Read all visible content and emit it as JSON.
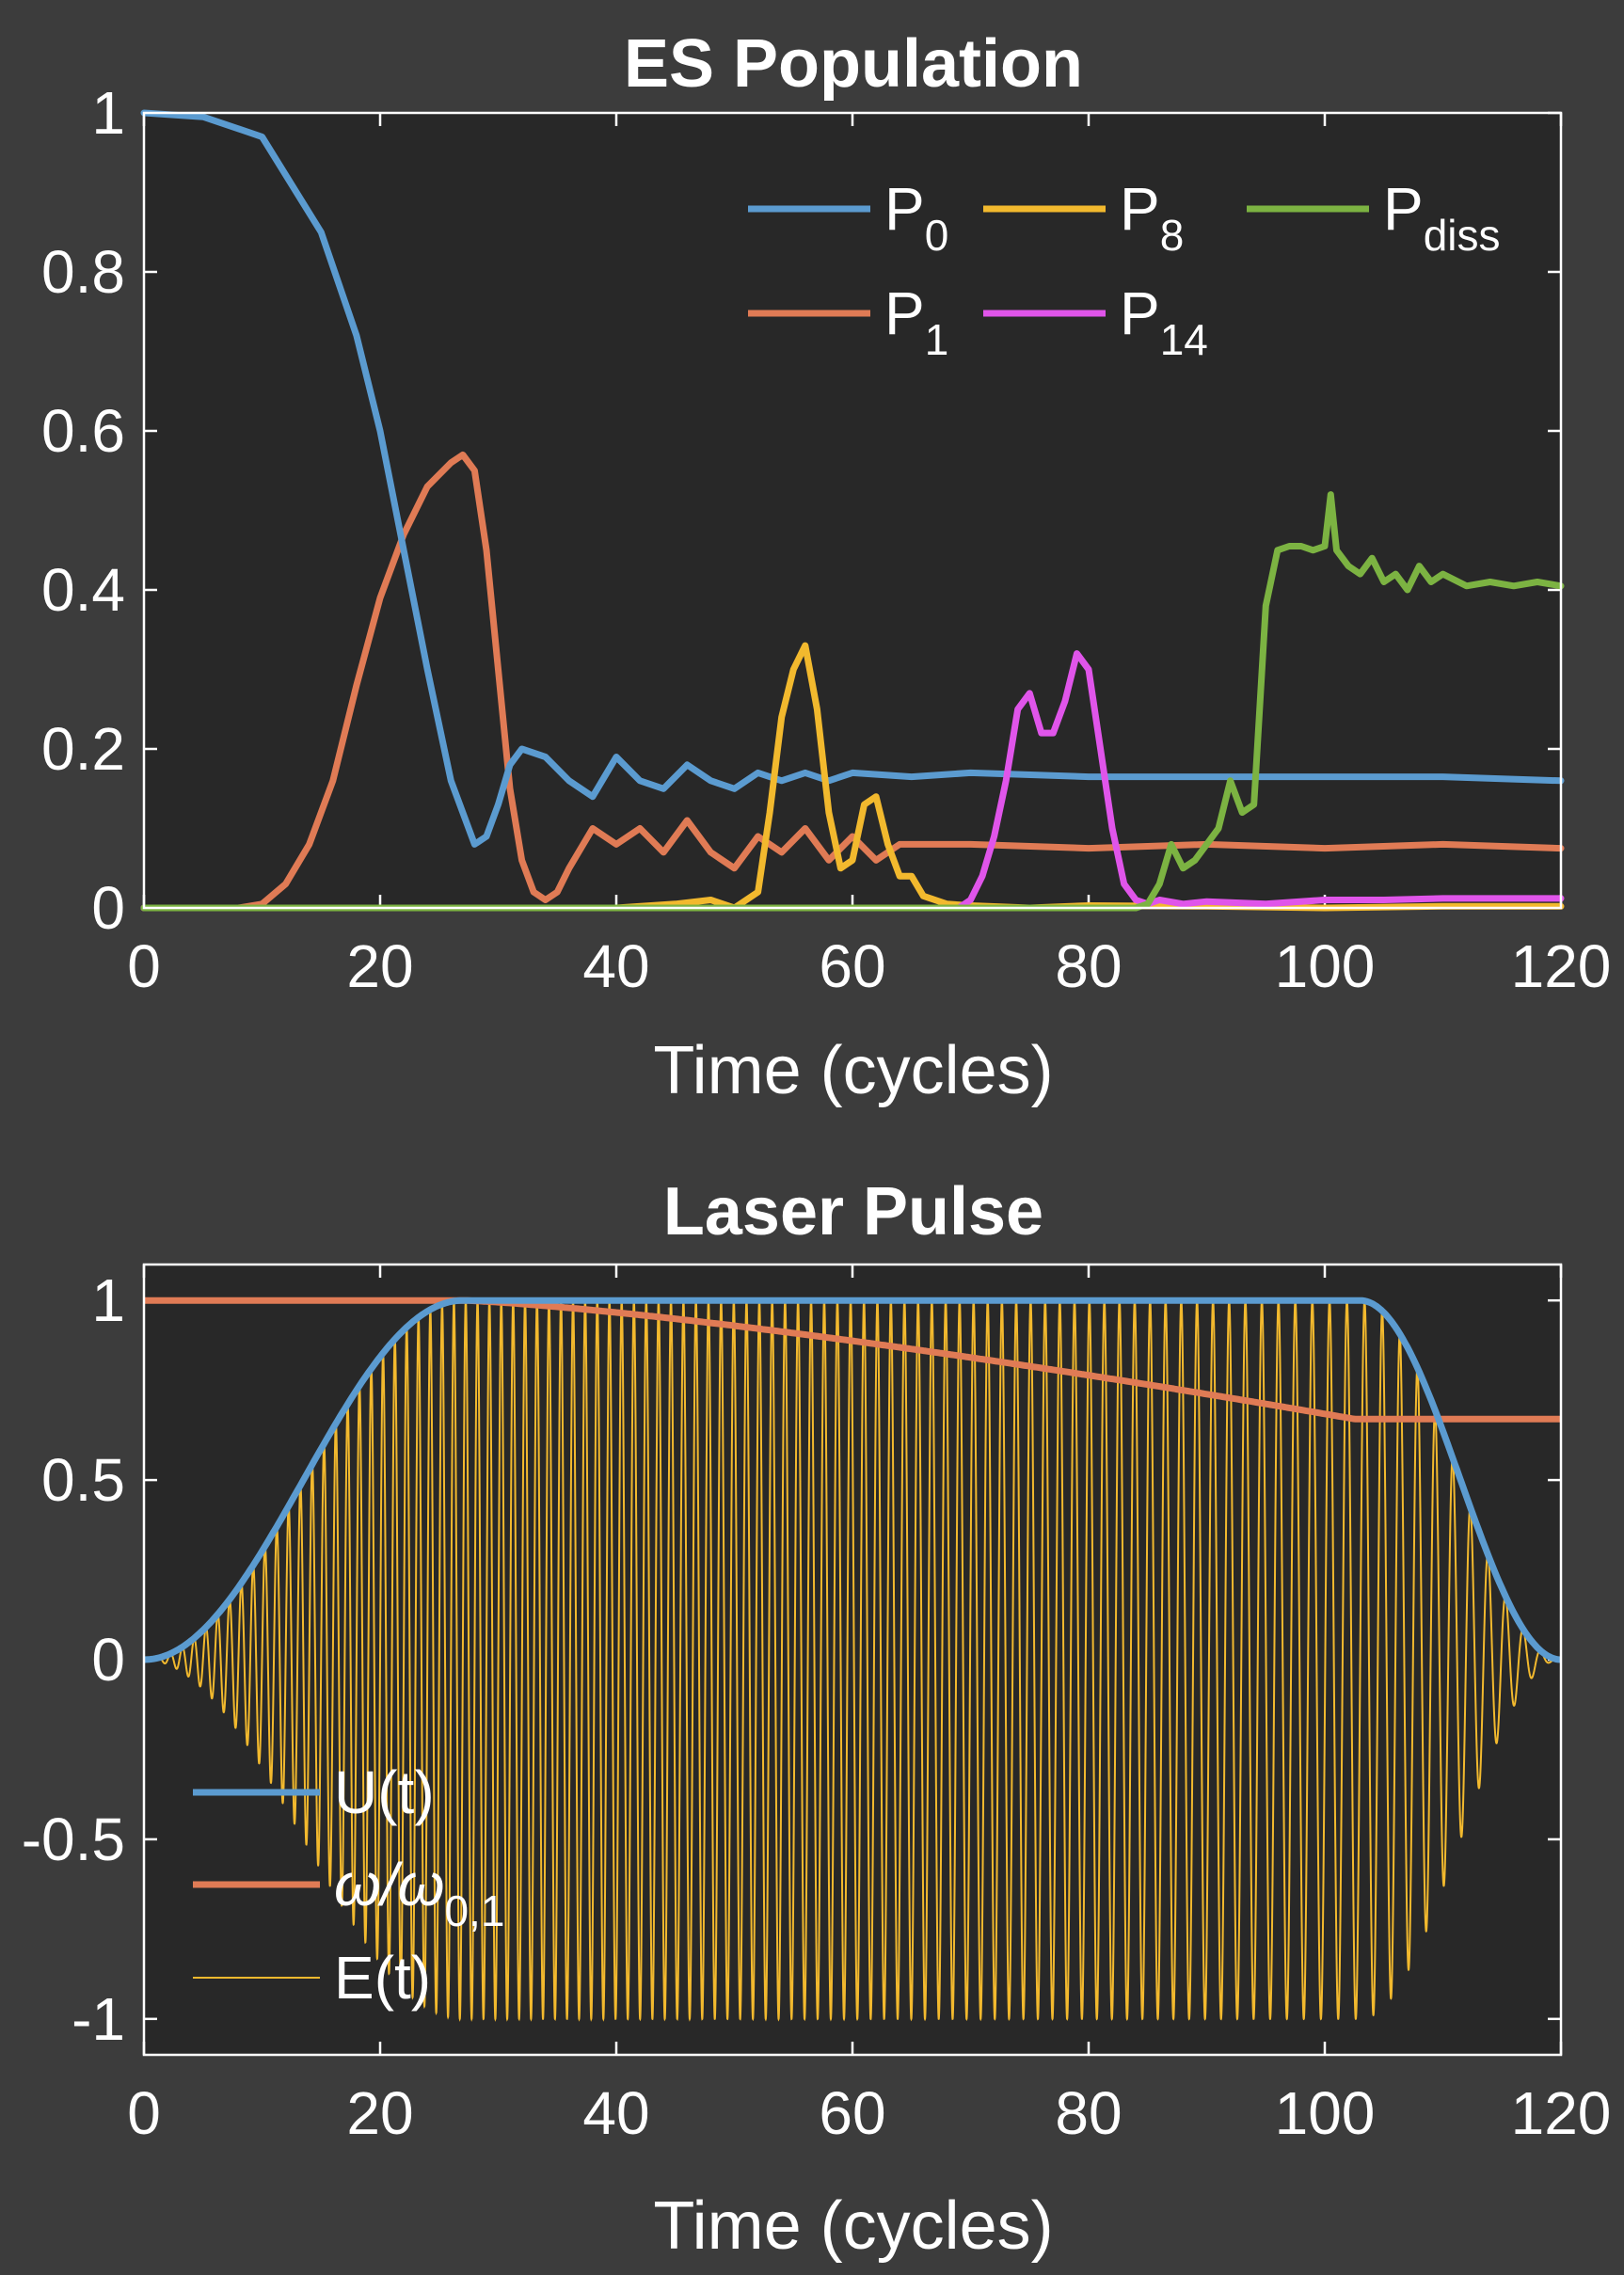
{
  "colors": {
    "figure_bg": "#3c3c3c",
    "axes_bg": "#282828",
    "frame": "#ffffff",
    "blue": "#5b9bd0",
    "orange": "#e07b55",
    "yellow": "#f2b92e",
    "green": "#7cb342",
    "magenta": "#e055ea"
  },
  "chart_data": [
    {
      "type": "line",
      "title": "ES Population",
      "xlabel": "Time (cycles)",
      "ylabel": "",
      "xlim": [
        0,
        120
      ],
      "ylim": [
        0,
        1
      ],
      "x_ticks": [
        "0",
        "20",
        "40",
        "60",
        "80",
        "100",
        "120"
      ],
      "y_ticks": [
        "0",
        "0.2",
        "0.4",
        "0.6",
        "0.8",
        "1"
      ],
      "grid": false,
      "legend_position": "top-right",
      "series": [
        {
          "name": "P",
          "sub": "0",
          "color": "blue",
          "x": [
            0,
            5,
            10,
            15,
            18,
            20,
            22,
            24,
            26,
            28,
            29,
            30,
            31,
            32,
            34,
            36,
            38,
            40,
            42,
            44,
            46,
            48,
            50,
            52,
            54,
            56,
            58,
            60,
            65,
            70,
            80,
            90,
            100,
            110,
            120
          ],
          "y": [
            1.0,
            0.995,
            0.97,
            0.85,
            0.72,
            0.6,
            0.45,
            0.3,
            0.16,
            0.08,
            0.09,
            0.13,
            0.18,
            0.2,
            0.19,
            0.16,
            0.14,
            0.19,
            0.16,
            0.15,
            0.18,
            0.16,
            0.15,
            0.17,
            0.16,
            0.17,
            0.16,
            0.17,
            0.165,
            0.17,
            0.165,
            0.165,
            0.165,
            0.165,
            0.16
          ]
        },
        {
          "name": "P",
          "sub": "1",
          "color": "orange",
          "x": [
            0,
            8,
            10,
            12,
            14,
            16,
            18,
            20,
            22,
            24,
            26,
            27,
            28,
            29,
            30,
            31,
            32,
            33,
            34,
            35,
            36,
            38,
            40,
            42,
            44,
            46,
            48,
            50,
            52,
            54,
            56,
            58,
            60,
            62,
            64,
            70,
            80,
            90,
            100,
            110,
            120
          ],
          "y": [
            0,
            0.0,
            0.005,
            0.03,
            0.08,
            0.16,
            0.28,
            0.39,
            0.47,
            0.53,
            0.56,
            0.57,
            0.55,
            0.45,
            0.3,
            0.15,
            0.06,
            0.02,
            0.01,
            0.02,
            0.05,
            0.1,
            0.08,
            0.1,
            0.07,
            0.11,
            0.07,
            0.05,
            0.09,
            0.07,
            0.1,
            0.06,
            0.09,
            0.06,
            0.08,
            0.08,
            0.075,
            0.08,
            0.075,
            0.08,
            0.075
          ]
        },
        {
          "name": "P",
          "sub": "8",
          "color": "yellow",
          "x": [
            0,
            40,
            45,
            48,
            50,
            52,
            53,
            54,
            55,
            56,
            57,
            58,
            59,
            60,
            61,
            62,
            63,
            64,
            65,
            66,
            68,
            70,
            75,
            80,
            90,
            100,
            110,
            120
          ],
          "y": [
            0,
            0,
            0.005,
            0.01,
            0.0,
            0.02,
            0.12,
            0.24,
            0.3,
            0.33,
            0.25,
            0.12,
            0.05,
            0.06,
            0.13,
            0.14,
            0.08,
            0.04,
            0.04,
            0.015,
            0.005,
            0.003,
            0.0,
            0.003,
            0.002,
            0.0,
            0.002,
            0.002
          ]
        },
        {
          "name": "P",
          "sub": "14",
          "color": "magenta",
          "x": [
            0,
            69,
            70,
            71,
            72,
            73,
            74,
            75,
            76,
            77,
            78,
            79,
            80,
            81,
            82,
            83,
            84,
            85,
            86,
            88,
            90,
            95,
            100,
            105,
            110,
            120
          ],
          "y": [
            0,
            0,
            0.01,
            0.04,
            0.09,
            0.16,
            0.25,
            0.27,
            0.22,
            0.22,
            0.26,
            0.32,
            0.3,
            0.2,
            0.1,
            0.03,
            0.01,
            0.005,
            0.01,
            0.005,
            0.008,
            0.005,
            0.01,
            0.01,
            0.012,
            0.012
          ]
        },
        {
          "name": "P",
          "sub": "diss",
          "color": "green",
          "x": [
            0,
            84,
            85,
            86,
            87,
            88,
            89,
            90,
            91,
            92,
            93,
            94,
            95,
            96,
            97,
            98,
            99,
            100,
            100.5,
            101,
            102,
            103,
            104,
            105,
            106,
            107,
            108,
            109,
            110,
            112,
            114,
            116,
            118,
            120
          ],
          "y": [
            0,
            0,
            0.005,
            0.03,
            0.08,
            0.05,
            0.06,
            0.08,
            0.1,
            0.16,
            0.12,
            0.13,
            0.38,
            0.45,
            0.455,
            0.455,
            0.45,
            0.455,
            0.52,
            0.45,
            0.43,
            0.42,
            0.44,
            0.41,
            0.42,
            0.4,
            0.43,
            0.41,
            0.42,
            0.405,
            0.41,
            0.405,
            0.41,
            0.405
          ]
        }
      ]
    },
    {
      "type": "line",
      "title": "Laser Pulse",
      "xlabel": "Time (cycles)",
      "ylabel": "",
      "xlim": [
        0,
        120
      ],
      "ylim": [
        -1.1,
        1.1
      ],
      "x_ticks": [
        "0",
        "20",
        "40",
        "60",
        "80",
        "100",
        "120"
      ],
      "y_ticks": [
        "-1",
        "-0.5",
        "0",
        "0.5",
        "1"
      ],
      "grid": false,
      "legend_position": "bottom-left",
      "envelope": {
        "rise_end": 27,
        "flat_end": 103,
        "fall_end": 120
      },
      "frequency": {
        "start": 1.0,
        "chirp_start": 27,
        "chirp_end": 102.5,
        "end": 0.67
      },
      "series": [
        {
          "name": "U(t)",
          "color": "blue",
          "width": 7
        },
        {
          "name": "ω/ω",
          "sub": "0,1",
          "color": "orange",
          "width": 7
        },
        {
          "name": "E(t)",
          "color": "yellow",
          "width": 2
        }
      ]
    }
  ]
}
